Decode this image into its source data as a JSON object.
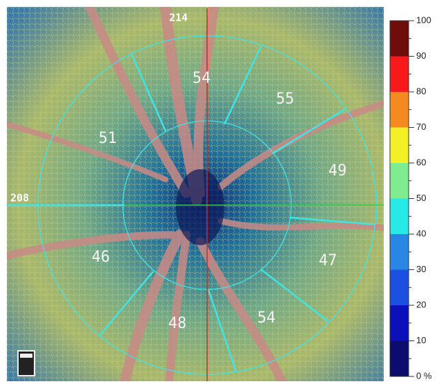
{
  "image_labels": {
    "top": "214",
    "left": "208"
  },
  "sectors": [
    "54",
    "55",
    "49",
    "47",
    "54",
    "48",
    "46",
    "51"
  ],
  "colorbar": {
    "range": [
      0,
      100
    ],
    "ticks": [
      {
        "value": 0,
        "label": "0 %"
      },
      10,
      20,
      30,
      40,
      50,
      60,
      70,
      80,
      90,
      100
    ],
    "colors": [
      "#0c0c6e",
      "#0c10b8",
      "#1c50e0",
      "#2a86e4",
      "#28e8e8",
      "#80ec90",
      "#f4f028",
      "#f48a20",
      "#f81a1a",
      "#700c0c"
    ]
  }
}
